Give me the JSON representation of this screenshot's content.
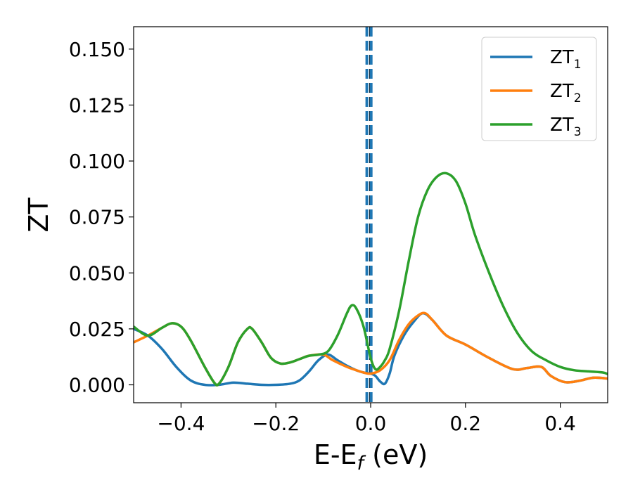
{
  "chart_data": {
    "type": "line",
    "title": "",
    "xlabel": "E-E",
    "xlabel_sub": "f",
    "xlabel_unit": " (eV)",
    "ylabel": "ZT",
    "xlim": [
      -0.5,
      0.5
    ],
    "ylim": [
      -0.008,
      0.16
    ],
    "x_ticks": [
      -0.4,
      -0.2,
      0.0,
      0.2,
      0.4
    ],
    "x_tick_labels": [
      "−0.4",
      "−0.2",
      "0.0",
      "0.2",
      "0.4"
    ],
    "y_ticks": [
      0.0,
      0.025,
      0.05,
      0.075,
      0.1,
      0.125,
      0.15
    ],
    "y_tick_labels": [
      "0.000",
      "0.025",
      "0.050",
      "0.075",
      "0.100",
      "0.125",
      "0.150"
    ],
    "grid": false,
    "legend_position": "top-right",
    "vlines": [
      {
        "x": -0.008,
        "color": "#1f77b4",
        "style": "dashed"
      },
      {
        "x": 0.0,
        "color": "#000000",
        "style": "dashed"
      },
      {
        "x": 0.001,
        "color": "#1f77b4",
        "style": "dashed"
      }
    ],
    "series": [
      {
        "name": "ZT",
        "name_sub": "1",
        "color": "#1f77b4",
        "x": [
          -0.5,
          -0.47,
          -0.44,
          -0.41,
          -0.38,
          -0.35,
          -0.32,
          -0.29,
          -0.26,
          -0.23,
          -0.2,
          -0.17,
          -0.15,
          -0.13,
          -0.11,
          -0.09,
          -0.07,
          -0.05,
          -0.03,
          -0.015,
          0.0,
          0.01,
          0.02,
          0.03,
          0.04,
          0.05,
          0.07,
          0.09,
          0.11,
          0.13,
          0.16,
          0.2,
          0.25,
          0.3,
          0.33,
          0.36,
          0.38,
          0.41,
          0.44,
          0.47,
          0.5
        ],
        "y": [
          0.025,
          0.022,
          0.016,
          0.008,
          0.002,
          0.0,
          0.0,
          0.001,
          0.0005,
          0.0,
          0.0,
          0.0005,
          0.002,
          0.006,
          0.011,
          0.0135,
          0.011,
          0.0085,
          0.0065,
          0.0055,
          0.005,
          0.004,
          0.0015,
          0.0005,
          0.005,
          0.013,
          0.022,
          0.028,
          0.032,
          0.029,
          0.022,
          0.018,
          0.012,
          0.007,
          0.0075,
          0.008,
          0.004,
          0.0012,
          0.0018,
          0.0032,
          0.0028
        ]
      },
      {
        "name": "ZT",
        "name_sub": "2",
        "color": "#ff7f0e",
        "x": [
          -0.5,
          -0.47,
          -0.44,
          -0.42,
          -0.4,
          -0.38,
          -0.35,
          -0.33,
          -0.32,
          -0.3,
          -0.28,
          -0.26,
          -0.25,
          -0.23,
          -0.21,
          -0.19,
          -0.17,
          -0.15,
          -0.13,
          -0.1,
          -0.08,
          -0.05,
          -0.03,
          -0.015,
          0.0,
          0.02,
          0.04,
          0.06,
          0.08,
          0.1,
          0.115,
          0.13,
          0.16,
          0.2,
          0.25,
          0.3,
          0.33,
          0.36,
          0.38,
          0.41,
          0.44,
          0.47,
          0.5
        ],
        "y": [
          0.019,
          0.022,
          0.0255,
          0.0275,
          0.026,
          0.02,
          0.008,
          0.001,
          0.0005,
          0.008,
          0.019,
          0.025,
          0.025,
          0.019,
          0.012,
          0.0095,
          0.01,
          0.0115,
          0.013,
          0.0135,
          0.011,
          0.008,
          0.0065,
          0.0055,
          0.005,
          0.0065,
          0.011,
          0.02,
          0.027,
          0.031,
          0.032,
          0.029,
          0.022,
          0.018,
          0.012,
          0.007,
          0.0075,
          0.008,
          0.004,
          0.0012,
          0.0018,
          0.0032,
          0.0028
        ]
      },
      {
        "name": "ZT",
        "name_sub": "3",
        "color": "#2ca02c",
        "x": [
          -0.5,
          -0.47,
          -0.44,
          -0.42,
          -0.4,
          -0.38,
          -0.35,
          -0.33,
          -0.32,
          -0.3,
          -0.28,
          -0.26,
          -0.25,
          -0.23,
          -0.21,
          -0.19,
          -0.17,
          -0.15,
          -0.13,
          -0.11,
          -0.09,
          -0.07,
          -0.05,
          -0.04,
          -0.03,
          -0.015,
          0.0,
          0.01,
          0.02,
          0.03,
          0.04,
          0.06,
          0.08,
          0.1,
          0.12,
          0.14,
          0.16,
          0.18,
          0.2,
          0.22,
          0.25,
          0.28,
          0.31,
          0.34,
          0.37,
          0.4,
          0.43,
          0.46,
          0.49,
          0.5
        ],
        "y": [
          0.026,
          0.022,
          0.0255,
          0.0275,
          0.026,
          0.02,
          0.008,
          0.001,
          0.0005,
          0.008,
          0.019,
          0.025,
          0.025,
          0.019,
          0.012,
          0.0095,
          0.01,
          0.0115,
          0.013,
          0.0135,
          0.015,
          0.022,
          0.032,
          0.0355,
          0.034,
          0.026,
          0.012,
          0.007,
          0.008,
          0.011,
          0.016,
          0.033,
          0.055,
          0.075,
          0.087,
          0.093,
          0.0945,
          0.091,
          0.081,
          0.067,
          0.05,
          0.035,
          0.023,
          0.015,
          0.011,
          0.008,
          0.0065,
          0.006,
          0.0055,
          0.0048
        ]
      }
    ]
  }
}
